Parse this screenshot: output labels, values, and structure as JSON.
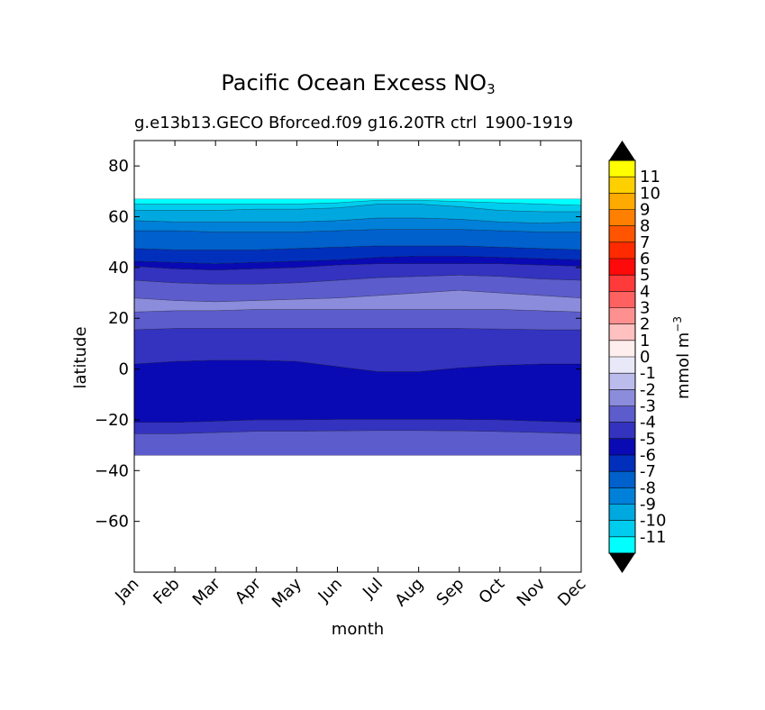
{
  "chart_data": {
    "type": "heatmap",
    "title": "Pacific Ocean Excess NO",
    "title_subscript": "3",
    "subtitle_left": "g.e13b13.GECO Bforced.f09 g16.20TR ctrl",
    "subtitle_right": "1900-1919",
    "xlabel": "month",
    "ylabel": "latitude",
    "x_categories": [
      "Jan",
      "Feb",
      "Mar",
      "Apr",
      "May",
      "Jun",
      "Jul",
      "Aug",
      "Sep",
      "Oct",
      "Nov",
      "Dec"
    ],
    "ylim": [
      -80,
      90
    ],
    "yticks": [
      -60,
      -40,
      -20,
      0,
      20,
      40,
      60,
      80
    ],
    "ytick_labels": [
      "−60",
      "−40",
      "−20",
      "0",
      "20",
      "40",
      "60",
      "80"
    ],
    "data_lat_range": [
      -34,
      67
    ],
    "colorbar": {
      "label": "mmol m",
      "label_superscript": "−3",
      "levels": [
        -12,
        -11,
        -10,
        -9,
        -8,
        -7,
        -6,
        -5,
        -4,
        -3,
        -2,
        -1,
        0,
        1,
        2,
        3,
        4,
        5,
        6,
        7,
        8,
        9,
        10,
        11,
        12
      ],
      "tick_labels": [
        "-11",
        "-10",
        "-9",
        "-8",
        "-7",
        "-6",
        "-5",
        "-4",
        "-3",
        "-2",
        "-1",
        "0",
        "1",
        "2",
        "3",
        "4",
        "5",
        "6",
        "7",
        "8",
        "9",
        "10",
        "11"
      ],
      "colors": [
        "#00ffff",
        "#00ccee",
        "#00a8e0",
        "#0080d8",
        "#0060cc",
        "#0030bb",
        "#0a0ab4",
        "#3333c0",
        "#5c5ccc",
        "#8c8cdc",
        "#bcbcec",
        "#e8e8f8",
        "#ffeeee",
        "#ffc0c0",
        "#ff9090",
        "#ff6060",
        "#ff3a3a",
        "#ff0a0a",
        "#ff2a00",
        "#ff5500",
        "#ff7f00",
        "#ffaa00",
        "#ffd000",
        "#ffff00"
      ],
      "extend": "both",
      "extend_color": "#000000"
    },
    "bands": [
      {
        "y1": [
          -34,
          -34,
          -34,
          -34,
          -34,
          -34,
          -34,
          -34,
          -34,
          -34,
          -34,
          -34
        ],
        "y2": [
          -25.5,
          -25.5,
          -25,
          -24.5,
          -24.5,
          -24.3,
          -24.2,
          -24.2,
          -24.3,
          -24.6,
          -25,
          -25.5
        ],
        "level": -4
      },
      {
        "y1": [
          -25.5,
          -25.5,
          -25,
          -24.5,
          -24.5,
          -24.3,
          -24.2,
          -24.2,
          -24.3,
          -24.6,
          -25,
          -25.5
        ],
        "y2": [
          -21,
          -21,
          -20.5,
          -20,
          -20,
          -19.8,
          -19.8,
          -19.8,
          -19.8,
          -20,
          -20.5,
          -21
        ],
        "level": -5
      },
      {
        "y1": [
          -21,
          -21,
          -20.5,
          -20,
          -20,
          -19.8,
          -19.8,
          -19.8,
          -19.8,
          -20,
          -20.5,
          -21
        ],
        "y2": [
          2,
          3,
          3.5,
          3.5,
          3,
          1,
          -1,
          -1,
          0.5,
          1.5,
          2,
          2
        ],
        "level": -6
      },
      {
        "y1": [
          2,
          3,
          3.5,
          3.5,
          3,
          1,
          -1,
          -1,
          0.5,
          1.5,
          2,
          2
        ],
        "y2": [
          15.5,
          16,
          16,
          16,
          16,
          16,
          16,
          16,
          16,
          15.8,
          15.5,
          15.5
        ],
        "level": -5
      },
      {
        "y1": [
          15.5,
          16,
          16,
          16,
          16,
          16,
          16,
          16,
          16,
          15.8,
          15.5,
          15.5
        ],
        "y2": [
          22.5,
          23,
          23,
          23.5,
          23.5,
          23.5,
          23.5,
          23.5,
          23.5,
          23.5,
          23,
          22.5
        ],
        "level": -4
      },
      {
        "y1": [
          22.5,
          23,
          23,
          23.5,
          23.5,
          23.5,
          23.5,
          23.5,
          23.5,
          23.5,
          23,
          22.5
        ],
        "y2": [
          28,
          27,
          26.5,
          27,
          27.5,
          28,
          29,
          30,
          31,
          30,
          29,
          28
        ],
        "level": -3
      },
      {
        "y1": [
          28,
          27,
          26.5,
          27,
          27.5,
          28,
          29,
          30,
          31,
          30,
          29,
          28
        ],
        "y2": [
          35,
          34,
          33.5,
          33.5,
          34,
          35,
          36,
          36.5,
          37,
          36.5,
          35.5,
          35
        ],
        "level": -4
      },
      {
        "y1": [
          35,
          34,
          33.5,
          33.5,
          34,
          35,
          36,
          36.5,
          37,
          36.5,
          35.5,
          35
        ],
        "y2": [
          40.5,
          39.5,
          39,
          39.5,
          40,
          41,
          41.5,
          41.5,
          41.5,
          41.5,
          41,
          40.5
        ],
        "level": -5
      },
      {
        "y1": [
          40.5,
          39.5,
          39,
          39.5,
          40,
          41,
          41.5,
          41.5,
          41.5,
          41.5,
          41,
          40.5
        ],
        "y2": [
          42.5,
          42,
          41.5,
          42,
          42.5,
          43,
          44,
          44.5,
          44.5,
          44,
          43.5,
          43
        ],
        "level": -6
      },
      {
        "y1": [
          42.5,
          42,
          41.5,
          42,
          42.5,
          43,
          44,
          44.5,
          44.5,
          44,
          43.5,
          43
        ],
        "y2": [
          47.5,
          47,
          47,
          47,
          47.5,
          48,
          48.5,
          48.5,
          48.5,
          48,
          47.5,
          47
        ],
        "level": -7
      },
      {
        "y1": [
          47.5,
          47,
          47,
          47,
          47.5,
          48,
          48.5,
          48.5,
          48.5,
          48,
          47.5,
          47
        ],
        "y2": [
          54.5,
          54.5,
          54,
          54,
          54,
          54.5,
          55,
          55,
          55,
          54.5,
          54,
          54
        ],
        "level": -8
      },
      {
        "y1": [
          54.5,
          54.5,
          54,
          54,
          54,
          54.5,
          55,
          55,
          55,
          54.5,
          54,
          54
        ],
        "y2": [
          58.5,
          58,
          58,
          58,
          58,
          58.5,
          59.5,
          59.5,
          59,
          58,
          57.5,
          58
        ],
        "level": -9
      },
      {
        "y1": [
          58.5,
          58,
          58,
          58,
          58,
          58.5,
          59.5,
          59.5,
          59,
          58,
          57.5,
          58
        ],
        "y2": [
          62.5,
          62.5,
          62.5,
          63,
          63,
          63.5,
          65,
          65,
          64,
          62.5,
          62,
          62
        ],
        "level": -10
      },
      {
        "y1": [
          62.5,
          62.5,
          62.5,
          63,
          63,
          63.5,
          65,
          65,
          64,
          62.5,
          62,
          62
        ],
        "y2": [
          65,
          65,
          65,
          65,
          65,
          65.5,
          66.5,
          66.5,
          66,
          65.5,
          65,
          64.5
        ],
        "level": -11
      },
      {
        "y1": [
          65,
          65,
          65,
          65,
          65,
          65.5,
          66.5,
          66.5,
          66,
          65.5,
          65,
          64.5
        ],
        "y2": [
          67,
          67,
          67,
          67,
          67,
          67,
          67,
          67,
          67,
          67,
          67,
          67
        ],
        "level": -12
      }
    ]
  }
}
